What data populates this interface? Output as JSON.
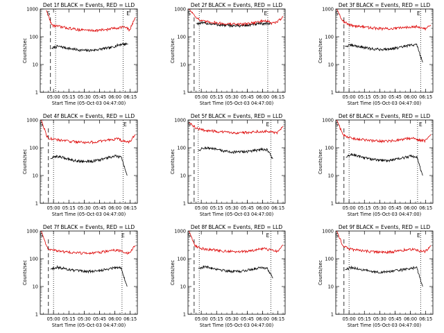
{
  "colors": {
    "events": "#000000",
    "lld": "#dd0000",
    "background": "#ffffff"
  },
  "common": {
    "ylabel": "Counts/sec",
    "xlabel": "Start Time (05-Oct-03 04:47:00)",
    "xticks": [
      "05:00",
      "05:15",
      "05:30",
      "05:45",
      "06:00",
      "06:15"
    ],
    "yticks": [
      "1",
      "10",
      "100",
      "1000"
    ],
    "marker_s": "S",
    "marker_e": "E"
  },
  "chart_data": [
    {
      "type": "line",
      "title": "Det 1f BLACK = Events, RED = LLD",
      "yscale": "log",
      "ylim": [
        1,
        1000
      ],
      "xlim": [
        "04:47",
        "06:22"
      ],
      "s_marker": "04:55",
      "e_marker": "06:13",
      "dashed_line": "04:57",
      "dotted_lines": [
        "05:02",
        "06:08"
      ],
      "series": [
        {
          "name": "Events",
          "color": "black",
          "start": "04:58",
          "end": "06:13",
          "values": [
            38,
            45,
            42,
            38,
            35,
            33,
            32,
            33,
            35,
            38,
            40,
            48,
            55,
            55
          ]
        },
        {
          "name": "LLD",
          "color": "red",
          "start": "04:53",
          "end": "06:20",
          "values": [
            900,
            260,
            240,
            220,
            205,
            190,
            180,
            175,
            170,
            170,
            175,
            185,
            200,
            215,
            230,
            175,
            500
          ]
        }
      ]
    },
    {
      "type": "line",
      "title": "Det 2f BLACK = Events, RED = LLD",
      "yscale": "log",
      "ylim": [
        1,
        1000
      ],
      "xlim": [
        "04:47",
        "06:22"
      ],
      "s_marker": "04:48",
      "e_marker": "06:03",
      "dashed_line": "04:53",
      "dotted_lines": [
        "04:58",
        "06:05"
      ],
      "series": [
        {
          "name": "Events",
          "color": "black",
          "start": "04:55",
          "end": "06:08",
          "values": [
            300,
            310,
            300,
            280,
            265,
            255,
            250,
            250,
            255,
            270,
            290,
            300,
            300
          ]
        },
        {
          "name": "LLD",
          "color": "red",
          "start": "04:48",
          "end": "06:20",
          "values": [
            1000,
            600,
            380,
            350,
            340,
            320,
            300,
            290,
            285,
            285,
            290,
            310,
            330,
            360,
            380,
            300,
            350,
            550
          ]
        }
      ]
    },
    {
      "type": "line",
      "title": "Det 3f BLACK = Events, RED = LLD",
      "yscale": "log",
      "ylim": [
        1,
        1000
      ],
      "xlim": [
        "04:47",
        "06:22"
      ],
      "s_marker": "04:48",
      "e_marker": "06:08",
      "dashed_line": "04:55",
      "dotted_lines": [
        "05:00",
        "06:10"
      ],
      "series": [
        {
          "name": "Events",
          "color": "black",
          "start": "04:56",
          "end": "06:12",
          "values": [
            45,
            50,
            46,
            42,
            38,
            36,
            35,
            36,
            38,
            40,
            45,
            50,
            52,
            12
          ]
        },
        {
          "name": "LLD",
          "color": "red",
          "start": "04:48",
          "end": "06:20",
          "values": [
            1000,
            380,
            270,
            250,
            235,
            220,
            210,
            200,
            195,
            195,
            200,
            210,
            225,
            240,
            230,
            190,
            260
          ]
        }
      ]
    },
    {
      "type": "line",
      "title": "Det 4f BLACK = Events, RED = LLD",
      "yscale": "log",
      "ylim": [
        1,
        1000
      ],
      "xlim": [
        "04:47",
        "06:22"
      ],
      "s_marker": "04:48",
      "e_marker": "06:10",
      "dashed_line": "04:55",
      "dotted_lines": [
        "05:00",
        "06:08"
      ],
      "series": [
        {
          "name": "Events",
          "color": "black",
          "start": "04:57",
          "end": "06:12",
          "values": [
            40,
            50,
            45,
            40,
            35,
            33,
            32,
            33,
            35,
            40,
            45,
            50,
            45,
            10
          ]
        },
        {
          "name": "LLD",
          "color": "red",
          "start": "04:48",
          "end": "06:20",
          "values": [
            1000,
            250,
            200,
            190,
            180,
            170,
            165,
            160,
            155,
            160,
            170,
            185,
            200,
            210,
            170,
            160,
            300
          ]
        }
      ]
    },
    {
      "type": "line",
      "title": "Det 5f BLACK = Events, RED = LLD",
      "yscale": "log",
      "ylim": [
        1,
        1000
      ],
      "xlim": [
        "04:47",
        "06:22"
      ],
      "s_marker": "04:48",
      "e_marker": "06:05",
      "dashed_line": "04:53",
      "dotted_lines": [
        "04:57",
        "06:08"
      ],
      "series": [
        {
          "name": "Events",
          "color": "black",
          "start": "04:57",
          "end": "06:10",
          "values": [
            80,
            100,
            95,
            88,
            80,
            74,
            70,
            70,
            72,
            75,
            80,
            90,
            85,
            40
          ]
        },
        {
          "name": "LLD",
          "color": "red",
          "start": "04:48",
          "end": "06:20",
          "values": [
            800,
            550,
            450,
            420,
            400,
            380,
            365,
            355,
            350,
            350,
            360,
            375,
            390,
            400,
            380,
            330,
            600
          ]
        }
      ]
    },
    {
      "type": "line",
      "title": "Det 6f BLACK = Events, RED = LLD",
      "yscale": "log",
      "ylim": [
        1,
        1000
      ],
      "xlim": [
        "04:47",
        "06:22"
      ],
      "s_marker": "04:48",
      "e_marker": "06:10",
      "dashed_line": "04:55",
      "dotted_lines": [
        "05:00",
        "06:07"
      ],
      "series": [
        {
          "name": "Events",
          "color": "black",
          "start": "04:57",
          "end": "06:12",
          "values": [
            45,
            58,
            50,
            45,
            40,
            37,
            35,
            35,
            37,
            40,
            45,
            50,
            48,
            10
          ]
        },
        {
          "name": "LLD",
          "color": "red",
          "start": "04:48",
          "end": "06:20",
          "values": [
            1000,
            300,
            230,
            210,
            200,
            190,
            180,
            175,
            170,
            175,
            185,
            200,
            215,
            220,
            190,
            180,
            300
          ]
        }
      ]
    },
    {
      "type": "line",
      "title": "Det 7f BLACK = Events, RED = LLD",
      "yscale": "log",
      "ylim": [
        1,
        1000
      ],
      "xlim": [
        "04:47",
        "06:22"
      ],
      "s_marker": "04:48",
      "e_marker": "06:08",
      "dashed_line": "04:55",
      "dotted_lines": [
        "05:00",
        "06:07"
      ],
      "series": [
        {
          "name": "Events",
          "color": "black",
          "start": "04:57",
          "end": "06:12",
          "values": [
            42,
            50,
            46,
            42,
            38,
            36,
            35,
            35,
            37,
            40,
            44,
            50,
            46,
            10
          ]
        },
        {
          "name": "LLD",
          "color": "red",
          "start": "04:48",
          "end": "06:20",
          "values": [
            1000,
            250,
            200,
            190,
            180,
            170,
            165,
            160,
            158,
            160,
            170,
            185,
            200,
            210,
            170,
            160,
            300
          ]
        }
      ]
    },
    {
      "type": "line",
      "title": "Det 8f BLACK = Events, RED = LLD",
      "yscale": "log",
      "ylim": [
        1,
        1000
      ],
      "xlim": [
        "04:47",
        "06:22"
      ],
      "s_marker": "04:48",
      "e_marker": "06:05",
      "dashed_line": "04:53",
      "dotted_lines": [
        "04:58",
        "06:08"
      ],
      "series": [
        {
          "name": "Events",
          "color": "black",
          "start": "04:57",
          "end": "06:10",
          "values": [
            45,
            52,
            48,
            44,
            40,
            37,
            35,
            35,
            37,
            40,
            45,
            50,
            45,
            20
          ]
        },
        {
          "name": "LLD",
          "color": "red",
          "start": "04:48",
          "end": "06:20",
          "values": [
            1000,
            300,
            240,
            220,
            210,
            200,
            190,
            185,
            180,
            180,
            190,
            205,
            220,
            230,
            200,
            190,
            320
          ]
        }
      ]
    },
    {
      "type": "line",
      "title": "Det 9f BLACK = Events, RED = LLD",
      "yscale": "log",
      "ylim": [
        1,
        1000
      ],
      "xlim": [
        "04:47",
        "06:22"
      ],
      "s_marker": "04:48",
      "e_marker": "06:08",
      "dashed_line": "04:55",
      "dotted_lines": [
        "05:00",
        "06:10"
      ],
      "series": [
        {
          "name": "Events",
          "color": "black",
          "start": "04:56",
          "end": "06:12",
          "values": [
            40,
            48,
            44,
            40,
            36,
            34,
            33,
            34,
            36,
            38,
            42,
            46,
            48,
            10
          ]
        },
        {
          "name": "LLD",
          "color": "red",
          "start": "04:48",
          "end": "06:20",
          "values": [
            1000,
            300,
            230,
            210,
            200,
            190,
            180,
            175,
            172,
            175,
            185,
            200,
            215,
            225,
            195,
            185,
            300
          ]
        }
      ]
    }
  ]
}
